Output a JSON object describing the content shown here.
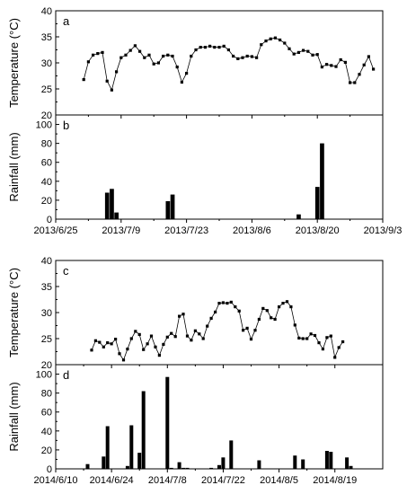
{
  "chart_data": [
    {
      "type": "line",
      "panel": "a",
      "ylabel": "Temperature (°C)",
      "ylim": [
        20,
        40
      ],
      "yticks": [
        20,
        25,
        30,
        35,
        40
      ],
      "xlim": [
        "2013-06-25",
        "2013-09-03"
      ],
      "xticks": [
        "2013/6/25",
        "2013/7/9",
        "2013/7/23",
        "2013/8/6",
        "2013/8/20",
        "2013/9/3"
      ],
      "marker": "square",
      "start_date": "2013-07-01",
      "values": [
        26.8,
        30.2,
        31.5,
        31.8,
        32.0,
        26.5,
        24.8,
        28.3,
        31.0,
        31.5,
        32.4,
        33.3,
        32.2,
        31.0,
        31.5,
        29.8,
        30.0,
        31.3,
        31.5,
        31.3,
        29.2,
        26.3,
        28.0,
        31.3,
        32.5,
        33.0,
        33.0,
        33.2,
        33.0,
        33.0,
        33.2,
        32.5,
        31.3,
        30.8,
        31.0,
        31.3,
        31.2,
        31.0,
        33.5,
        34.2,
        34.6,
        34.8,
        34.4,
        33.8,
        32.7,
        31.7,
        32.0,
        32.4,
        32.2,
        31.5,
        31.6,
        29.2,
        29.7,
        29.5,
        29.3,
        30.6,
        30.1,
        26.2,
        26.2,
        27.8,
        29.6,
        31.2,
        28.8
      ]
    },
    {
      "type": "bar",
      "panel": "b",
      "ylabel": "Rainfall (mm)",
      "ylim": [
        0,
        110
      ],
      "yticks": [
        0,
        20,
        40,
        60,
        80,
        100
      ],
      "xlim": [
        "2013-06-25",
        "2013-09-03"
      ],
      "xticks": [
        "2013/6/25",
        "2013/7/9",
        "2013/7/23",
        "2013/8/6",
        "2013/8/20",
        "2013/9/3"
      ],
      "bars": [
        {
          "date": "2013-07-06",
          "value": 28
        },
        {
          "date": "2013-07-07",
          "value": 32
        },
        {
          "date": "2013-07-08",
          "value": 7
        },
        {
          "date": "2013-07-19",
          "value": 19
        },
        {
          "date": "2013-07-20",
          "value": 26
        },
        {
          "date": "2013-08-16",
          "value": 5
        },
        {
          "date": "2013-08-20",
          "value": 34
        },
        {
          "date": "2013-08-21",
          "value": 80
        }
      ]
    },
    {
      "type": "line",
      "panel": "c",
      "ylabel": "Temperature (°C)",
      "ylim": [
        20,
        40
      ],
      "yticks": [
        20,
        25,
        30,
        35,
        40
      ],
      "xlim": [
        "2014-06-10",
        "2014-08-31"
      ],
      "xticks": [
        "2014/6/10",
        "2014/6/24",
        "2014/7/8",
        "2014/7/22",
        "2014/8/5",
        "2014/8/19"
      ],
      "marker": "square",
      "start_date": "2014-06-19",
      "values": [
        22.8,
        24.6,
        24.3,
        23.4,
        24.2,
        24.0,
        24.9,
        22.1,
        20.9,
        23.0,
        25.0,
        26.4,
        25.8,
        22.9,
        24.0,
        25.5,
        23.4,
        21.8,
        23.9,
        25.3,
        26.0,
        25.4,
        29.3,
        29.7,
        25.5,
        24.7,
        26.5,
        25.9,
        25.0,
        27.4,
        28.9,
        30.1,
        31.8,
        31.9,
        31.8,
        32.0,
        31.1,
        30.3,
        26.6,
        27.0,
        24.9,
        26.6,
        28.7,
        30.8,
        30.4,
        29.0,
        28.7,
        31.1,
        31.8,
        32.1,
        31.1,
        27.6,
        25.1,
        25.0,
        25.0,
        25.9,
        25.6,
        24.2,
        23.0,
        25.2,
        25.5,
        21.4,
        23.3,
        24.4
      ]
    },
    {
      "type": "bar",
      "panel": "d",
      "ylabel": "Rainfall (mm)",
      "ylim": [
        0,
        110
      ],
      "yticks": [
        0,
        20,
        40,
        60,
        80,
        100
      ],
      "xlim": [
        "2014-06-10",
        "2014-08-31"
      ],
      "xticks": [
        "2014/6/10",
        "2014/6/24",
        "2014/7/8",
        "2014/7/22",
        "2014/8/5",
        "2014/8/19"
      ],
      "bars": [
        {
          "date": "2014-06-18",
          "value": 5
        },
        {
          "date": "2014-06-22",
          "value": 13
        },
        {
          "date": "2014-06-23",
          "value": 45
        },
        {
          "date": "2014-06-28",
          "value": 3
        },
        {
          "date": "2014-06-29",
          "value": 46
        },
        {
          "date": "2014-07-01",
          "value": 17
        },
        {
          "date": "2014-07-02",
          "value": 82
        },
        {
          "date": "2014-07-08",
          "value": 97
        },
        {
          "date": "2014-07-09",
          "value": 1
        },
        {
          "date": "2014-07-11",
          "value": 7
        },
        {
          "date": "2014-07-12",
          "value": 1
        },
        {
          "date": "2014-07-13",
          "value": 1
        },
        {
          "date": "2014-07-19",
          "value": 1
        },
        {
          "date": "2014-07-21",
          "value": 4
        },
        {
          "date": "2014-07-22",
          "value": 12
        },
        {
          "date": "2014-07-24",
          "value": 30
        },
        {
          "date": "2014-07-31",
          "value": 9
        },
        {
          "date": "2014-08-09",
          "value": 14
        },
        {
          "date": "2014-08-11",
          "value": 10
        },
        {
          "date": "2014-08-17",
          "value": 19
        },
        {
          "date": "2014-08-18",
          "value": 18
        },
        {
          "date": "2014-08-22",
          "value": 12
        },
        {
          "date": "2014-08-23",
          "value": 3
        }
      ]
    }
  ]
}
